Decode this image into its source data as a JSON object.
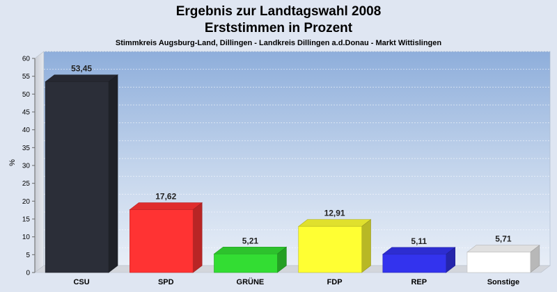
{
  "chart_data": {
    "type": "bar",
    "title": "Ergebnis zur Landtagswahl 2008",
    "title_line2": "Erststimmen in Prozent",
    "subtitle": "Stimmkreis Augsburg-Land, Dillingen - Landkreis Dillingen a.d.Donau - Markt Wittislingen",
    "ylabel": "%",
    "ylim": [
      0,
      60
    ],
    "yticks": [
      0,
      5,
      10,
      15,
      20,
      25,
      30,
      35,
      40,
      45,
      50,
      55,
      60
    ],
    "grid": true,
    "categories": [
      "CSU",
      "SPD",
      "GRÜNE",
      "FDP",
      "REP",
      "Sonstige"
    ],
    "values": [
      53.45,
      17.62,
      5.21,
      12.91,
      5.11,
      5.71
    ],
    "value_labels": [
      "53,45",
      "17,62",
      "5,21",
      "12,91",
      "5,11",
      "5,71"
    ],
    "colors": [
      "#2b2e38",
      "#ff3333",
      "#33dd33",
      "#ffff33",
      "#3333ee",
      "#ffffff"
    ]
  }
}
